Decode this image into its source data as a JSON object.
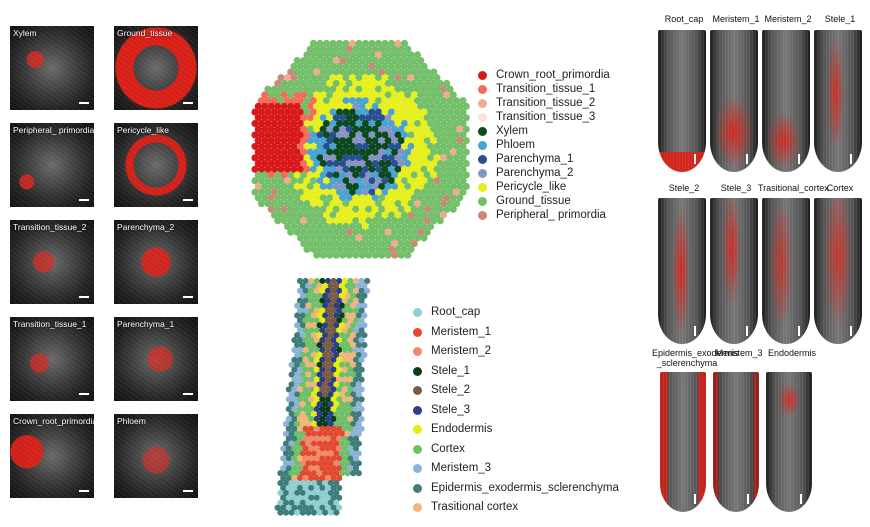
{
  "left_panel": {
    "tiles": [
      {
        "label": "Xylem"
      },
      {
        "label": "Ground_tissue"
      },
      {
        "label": "Peripheral_ primordia"
      },
      {
        "label": "Pericycle_like"
      },
      {
        "label": "Transition_tissue_2"
      },
      {
        "label": "Parenchyma_2"
      },
      {
        "label": "Transition_tissue_1"
      },
      {
        "label": "Parenchyma_1"
      },
      {
        "label": "Crown_root_primordia"
      },
      {
        "label": "Phloem"
      }
    ]
  },
  "cross_section_legend": [
    {
      "label": "Crown_root_primordia",
      "color": "#d7191c"
    },
    {
      "label": "Transition_tissue_1",
      "color": "#f26b5b"
    },
    {
      "label": "Transition_tissue_2",
      "color": "#f4a993"
    },
    {
      "label": "Transition_tissue_3",
      "color": "#fbe1d8"
    },
    {
      "label": "Xylem",
      "color": "#0b4a1f"
    },
    {
      "label": "Phloem",
      "color": "#4aa3d3"
    },
    {
      "label": "Parenchyma_1",
      "color": "#2a4f8f"
    },
    {
      "label": "Parenchyma_2",
      "color": "#8a93c6"
    },
    {
      "label": "Pericycle_like",
      "color": "#e7ef1c"
    },
    {
      "label": "Ground_tissue",
      "color": "#74c06a"
    },
    {
      "label": "Peripheral_ primordia",
      "color": "#c98a78"
    }
  ],
  "longitudinal_legend": [
    {
      "label": "Root_cap",
      "color": "#8fcfd1"
    },
    {
      "label": "Meristem_1",
      "color": "#e2492f"
    },
    {
      "label": "Meristem_2",
      "color": "#ee8a6c"
    },
    {
      "label": "Stele_1",
      "color": "#0b3d1c"
    },
    {
      "label": "Stele_2",
      "color": "#7a5c44"
    },
    {
      "label": "Stele_3",
      "color": "#2c3f86"
    },
    {
      "label": "Endodermis",
      "color": "#e6ee10"
    },
    {
      "label": "Cortex",
      "color": "#6fbf6a"
    },
    {
      "label": "Meristem_3",
      "color": "#8db3d8"
    },
    {
      "label": "Epidermis_exodermis_sclerenchyma",
      "color": "#3f7d7a"
    },
    {
      "label": "Trasitional cortex",
      "color": "#f3b479"
    }
  ],
  "right_panel": {
    "rows": [
      [
        {
          "label": "Root_cap"
        },
        {
          "label": "Meristem_1"
        },
        {
          "label": "Meristem_2"
        },
        {
          "label": "Stele_1"
        }
      ],
      [
        {
          "label": "Stele_2"
        },
        {
          "label": "Stele_3"
        },
        {
          "label": "Trasitional_cortex"
        },
        {
          "label": "Cortex"
        }
      ],
      [
        {
          "label": "Epidermis_exodermis\n_sclerenchyma"
        },
        {
          "label": "Meristem_3"
        },
        {
          "label": "Endodermis"
        }
      ]
    ]
  }
}
